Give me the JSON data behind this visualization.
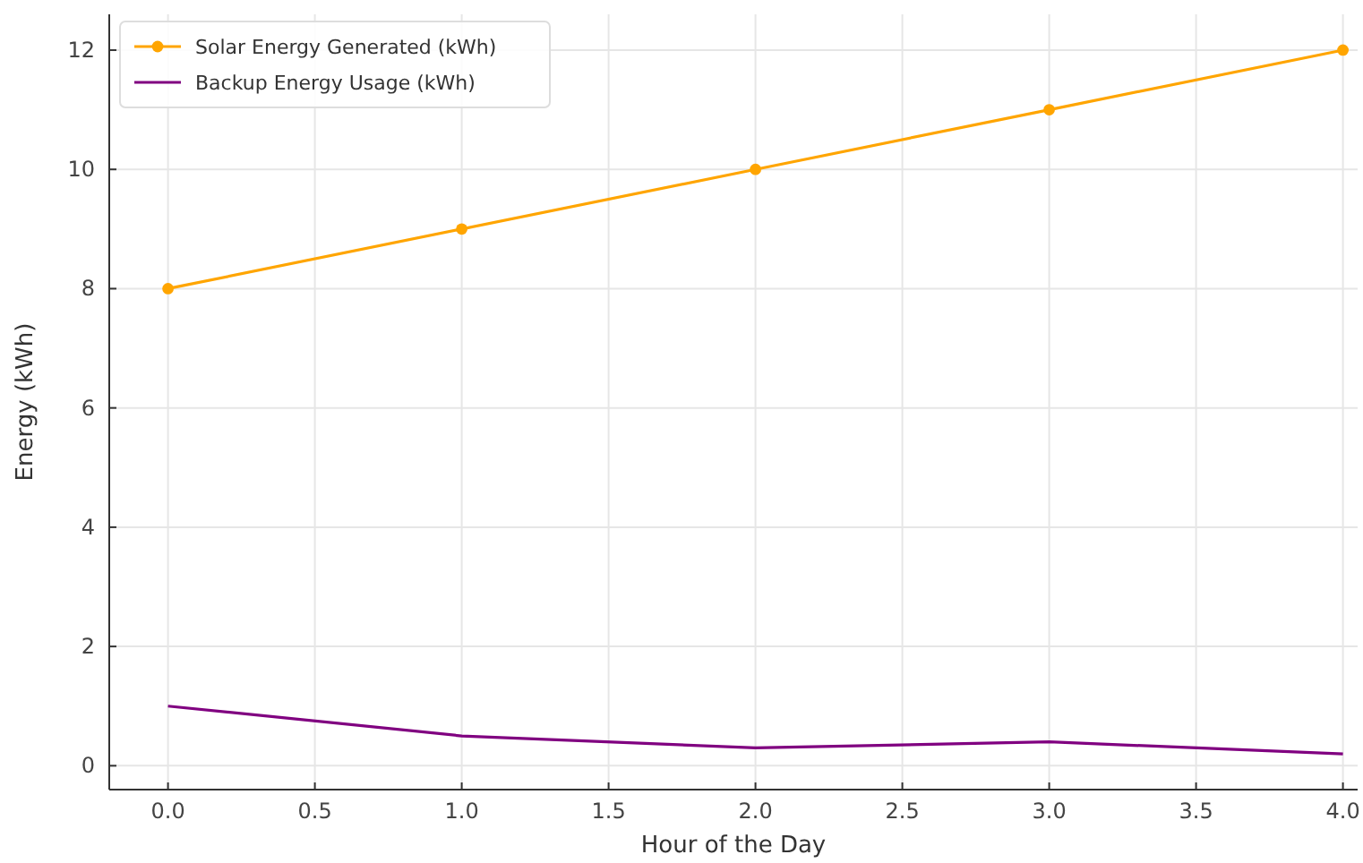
{
  "chart_data": {
    "type": "line",
    "xlabel": "Hour of the Day",
    "ylabel": "Energy (kWh)",
    "x": [
      0,
      1,
      2,
      3,
      4
    ],
    "series": [
      {
        "name": "Solar Energy Generated (kWh)",
        "color": "#ffa500",
        "values": [
          8,
          9,
          10,
          11,
          12
        ],
        "marker": "circle"
      },
      {
        "name": "Backup Energy Usage (kWh)",
        "color": "#800080",
        "values": [
          1,
          0.5,
          0.3,
          0.4,
          0.2
        ],
        "marker": "none"
      }
    ],
    "xlim": [
      -0.2,
      4.05
    ],
    "xticks": [
      {
        "value": 0,
        "label": "0.0"
      },
      {
        "value": 0.5,
        "label": "0.5"
      },
      {
        "value": 1,
        "label": "1.0"
      },
      {
        "value": 1.5,
        "label": "1.5"
      },
      {
        "value": 2,
        "label": "2.0"
      },
      {
        "value": 2.5,
        "label": "2.5"
      },
      {
        "value": 3,
        "label": "3.0"
      },
      {
        "value": 3.5,
        "label": "3.5"
      },
      {
        "value": 4,
        "label": "4.0"
      }
    ],
    "ylim": [
      -0.4,
      12.6
    ],
    "yticks": [
      0,
      2,
      4,
      6,
      8,
      10,
      12
    ],
    "grid": true,
    "legend": "top left",
    "line_style": "solid"
  }
}
